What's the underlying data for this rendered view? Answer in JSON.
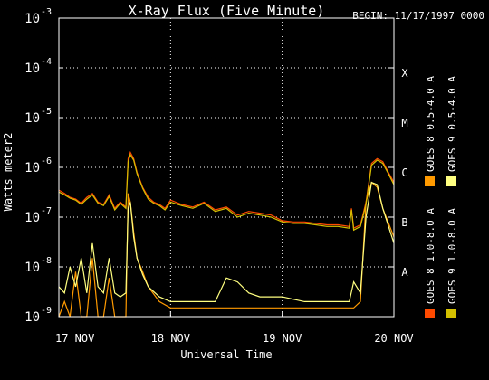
{
  "chart_data": {
    "type": "line",
    "title": "X-Ray Flux (Five Minute)",
    "begin_label": "BEGIN: 11/17/1997 0000",
    "xlabel": "Universal Time",
    "ylabel": "Watts meter2",
    "yscale": "log",
    "ylim": [
      1e-09,
      0.001
    ],
    "xlim": [
      0,
      3
    ],
    "x_ticks": [
      {
        "value": 0,
        "label": "17 NOV"
      },
      {
        "value": 1,
        "label": "18 NOV"
      },
      {
        "value": 2,
        "label": "19 NOV"
      },
      {
        "value": 3,
        "label": "20 NOV"
      }
    ],
    "y_ticks": [
      {
        "value": 1e-09,
        "base": "10",
        "exp": "-9"
      },
      {
        "value": 1e-08,
        "base": "10",
        "exp": "-8"
      },
      {
        "value": 1e-07,
        "base": "10",
        "exp": "-7"
      },
      {
        "value": 1e-06,
        "base": "10",
        "exp": "-6"
      },
      {
        "value": 1e-05,
        "base": "10",
        "exp": "-5"
      },
      {
        "value": 0.0001,
        "base": "10",
        "exp": "-4"
      },
      {
        "value": 0.001,
        "base": "10",
        "exp": "-3"
      }
    ],
    "flare_classes": [
      {
        "label": "A",
        "value": 1e-08
      },
      {
        "label": "B",
        "value": 1e-07
      },
      {
        "label": "C",
        "value": 1e-06
      },
      {
        "label": "M",
        "value": 1e-05
      },
      {
        "label": "X",
        "value": 0.0001
      }
    ],
    "grid": true,
    "legend_position": "right (vertical text)",
    "series": [
      {
        "name": "GOES 8 1.0-8.0 A",
        "color": "#ff4a00",
        "x": [
          0,
          0.05,
          0.1,
          0.15,
          0.2,
          0.25,
          0.3,
          0.35,
          0.4,
          0.45,
          0.5,
          0.55,
          0.6,
          0.62,
          0.64,
          0.67,
          0.7,
          0.75,
          0.8,
          0.85,
          0.9,
          0.95,
          1.0,
          1.1,
          1.2,
          1.3,
          1.4,
          1.5,
          1.6,
          1.7,
          1.8,
          1.9,
          2.0,
          2.1,
          2.2,
          2.3,
          2.4,
          2.5,
          2.6,
          2.62,
          2.64,
          2.7,
          2.75,
          2.8,
          2.85,
          2.9,
          2.95,
          3.0
        ],
        "y": [
          3.5e-07,
          3e-07,
          2.5e-07,
          2.3e-07,
          1.9e-07,
          2.5e-07,
          3e-07,
          2e-07,
          1.8e-07,
          2.8e-07,
          1.5e-07,
          2e-07,
          1.6e-07,
          1.5e-06,
          2e-06,
          1.5e-06,
          8e-07,
          4e-07,
          2.5e-07,
          2e-07,
          1.8e-07,
          1.5e-07,
          2.2e-07,
          1.8e-07,
          1.6e-07,
          2e-07,
          1.4e-07,
          1.6e-07,
          1.1e-07,
          1.3e-07,
          1.2e-07,
          1.1e-07,
          8.5e-08,
          8e-08,
          8e-08,
          7.5e-08,
          7e-08,
          7e-08,
          6.5e-08,
          1.5e-07,
          6e-08,
          7e-08,
          2e-07,
          1.2e-06,
          1.5e-06,
          1.3e-06,
          8e-07,
          5e-07
        ]
      },
      {
        "name": "GOES 8 0.5-4.0 A",
        "color": "#ff9a00",
        "x": [
          0,
          0.05,
          0.1,
          0.15,
          0.2,
          0.25,
          0.3,
          0.35,
          0.4,
          0.45,
          0.5,
          0.55,
          0.6,
          0.62,
          0.64,
          0.67,
          0.7,
          0.75,
          0.8,
          0.9,
          1.0,
          1.2,
          1.4,
          1.6,
          1.8,
          2.0,
          2.2,
          2.4,
          2.6,
          2.64,
          2.7,
          2.75,
          2.8,
          2.85,
          2.9,
          3.0
        ],
        "y": [
          1e-09,
          2e-09,
          1e-09,
          8e-09,
          1e-09,
          1e-09,
          1.5e-08,
          1e-09,
          1e-09,
          6e-09,
          1e-09,
          1e-09,
          1e-09,
          3e-07,
          2e-07,
          5e-08,
          1.5e-08,
          8e-09,
          4e-09,
          2e-09,
          1.5e-09,
          1.5e-09,
          1.5e-09,
          1.5e-09,
          1.5e-09,
          1.5e-09,
          1.5e-09,
          1.5e-09,
          1.5e-09,
          1.5e-09,
          2e-09,
          2e-07,
          5e-07,
          4e-07,
          1.5e-07,
          4e-08
        ]
      },
      {
        "name": "GOES 9 0.5-4.0 A",
        "color": "#ffff80",
        "x": [
          0,
          0.05,
          0.1,
          0.15,
          0.2,
          0.25,
          0.3,
          0.35,
          0.4,
          0.45,
          0.5,
          0.55,
          0.6,
          0.62,
          0.64,
          0.67,
          0.7,
          0.75,
          0.8,
          0.9,
          1.0,
          1.2,
          1.4,
          1.5,
          1.6,
          1.7,
          1.8,
          2.0,
          2.2,
          2.4,
          2.6,
          2.64,
          2.7,
          2.75,
          2.8,
          2.85,
          2.9,
          3.0
        ],
        "y": [
          4e-09,
          3e-09,
          1e-08,
          4e-09,
          1.5e-08,
          3e-09,
          3e-08,
          4e-09,
          3e-09,
          1.5e-08,
          3e-09,
          2.5e-09,
          3e-09,
          1.5e-07,
          2e-07,
          4e-08,
          1.5e-08,
          7e-09,
          4e-09,
          2.5e-09,
          2e-09,
          2e-09,
          2e-09,
          6e-09,
          5e-09,
          3e-09,
          2.5e-09,
          2.5e-09,
          2e-09,
          2e-09,
          2e-09,
          5e-09,
          3e-09,
          1e-07,
          5e-07,
          4.5e-07,
          1.5e-07,
          3e-08
        ]
      },
      {
        "name": "GOES 9 1.0-8.0 A",
        "color": "#d4c000",
        "x": [
          0,
          0.05,
          0.1,
          0.15,
          0.2,
          0.25,
          0.3,
          0.35,
          0.4,
          0.45,
          0.5,
          0.55,
          0.6,
          0.62,
          0.64,
          0.67,
          0.7,
          0.75,
          0.8,
          0.85,
          0.9,
          0.95,
          1.0,
          1.1,
          1.2,
          1.3,
          1.4,
          1.5,
          1.6,
          1.7,
          1.8,
          1.9,
          2.0,
          2.1,
          2.2,
          2.3,
          2.4,
          2.5,
          2.6,
          2.62,
          2.64,
          2.7,
          2.75,
          2.8,
          2.85,
          2.9,
          2.95,
          3.0
        ],
        "y": [
          3.2e-07,
          2.8e-07,
          2.4e-07,
          2.2e-07,
          1.8e-07,
          2.3e-07,
          2.8e-07,
          1.9e-07,
          1.7e-07,
          2.6e-07,
          1.4e-07,
          1.9e-07,
          1.5e-07,
          1.3e-06,
          1.8e-06,
          1.4e-06,
          7.5e-07,
          3.8e-07,
          2.3e-07,
          1.9e-07,
          1.7e-07,
          1.4e-07,
          2e-07,
          1.7e-07,
          1.5e-07,
          1.9e-07,
          1.3e-07,
          1.5e-07,
          1e-07,
          1.2e-07,
          1.1e-07,
          1e-07,
          8e-08,
          7.5e-08,
          7.5e-08,
          7e-08,
          6.5e-08,
          6.5e-08,
          6e-08,
          1.4e-07,
          5.5e-08,
          6.5e-08,
          1.8e-07,
          1.1e-06,
          1.4e-06,
          1.2e-06,
          7.5e-07,
          4.5e-07
        ]
      }
    ]
  }
}
